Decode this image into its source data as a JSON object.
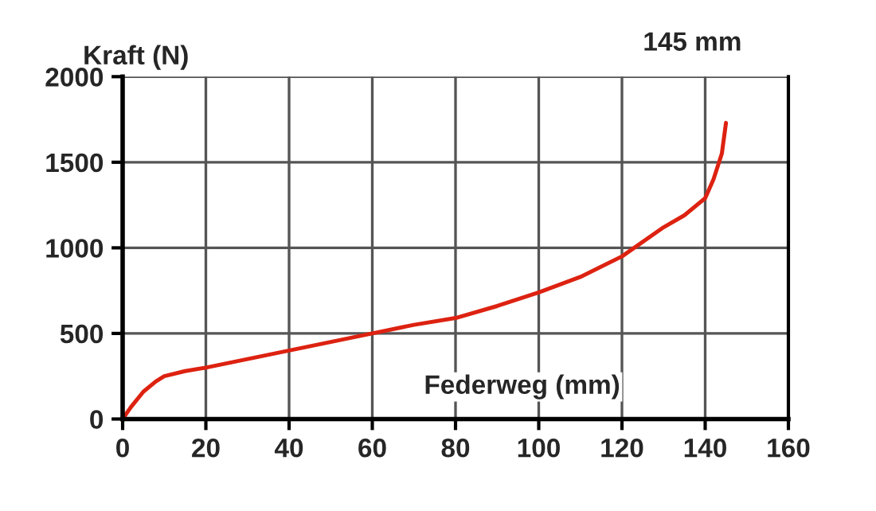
{
  "chart_data": {
    "type": "line",
    "xlabel": "Federweg (mm)",
    "ylabel": "Kraft (N)",
    "annotations": [
      "145 mm"
    ],
    "x": [
      0,
      2,
      5,
      8,
      10,
      15,
      20,
      30,
      40,
      50,
      60,
      70,
      80,
      90,
      100,
      110,
      120,
      130,
      135,
      140,
      142,
      144,
      145
    ],
    "series": [
      {
        "color": "#dd2211",
        "values": [
          0,
          70,
          160,
          220,
          250,
          280,
          300,
          350,
          400,
          450,
          500,
          550,
          590,
          660,
          740,
          830,
          950,
          1120,
          1190,
          1290,
          1400,
          1550,
          1730
        ]
      }
    ],
    "xlim": [
      0,
      160
    ],
    "ylim": [
      0,
      2000
    ],
    "xticks": [
      0,
      20,
      40,
      60,
      80,
      100,
      120,
      140,
      160
    ],
    "yticks": [
      0,
      500,
      1000,
      1500,
      2000
    ],
    "grid": true,
    "marker": "none",
    "line_style": "solid"
  }
}
